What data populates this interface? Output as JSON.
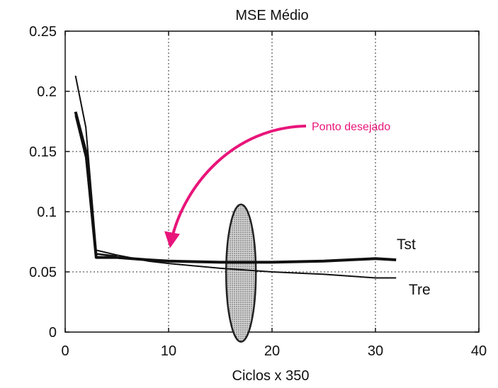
{
  "chart_data": {
    "type": "line",
    "title": "MSE Médio",
    "xlabel": "Ciclos x 350",
    "ylabel": "",
    "xlim": [
      0,
      40
    ],
    "ylim": [
      0,
      0.25
    ],
    "x_ticks": [
      "0",
      "10",
      "20",
      "30",
      "40"
    ],
    "y_ticks": [
      "0",
      "0.05",
      "0.1",
      "0.15",
      "0.2",
      "0.25"
    ],
    "grid": true,
    "series": [
      {
        "name": "Tst",
        "x": [
          1,
          2,
          3,
          5,
          8,
          10,
          15,
          20,
          25,
          30,
          32
        ],
        "y": [
          0.183,
          0.15,
          0.062,
          0.062,
          0.06,
          0.059,
          0.058,
          0.058,
          0.059,
          0.061,
          0.06
        ]
      },
      {
        "name": "Tre",
        "x": [
          1,
          2,
          3,
          5,
          8,
          10,
          15,
          20,
          25,
          30,
          32
        ],
        "y": [
          0.213,
          0.17,
          0.068,
          0.064,
          0.059,
          0.057,
          0.053,
          0.05,
          0.048,
          0.045,
          0.045
        ]
      },
      {
        "name": "",
        "x": [
          1,
          2,
          3,
          4,
          5
        ],
        "y": [
          0.18,
          0.145,
          0.065,
          0.064,
          0.063
        ]
      }
    ],
    "annotations": [
      {
        "text": "Ponto desejado",
        "color": "#e8157a",
        "arrow_to": [
          10,
          0.065
        ]
      }
    ],
    "highlight": {
      "type": "ellipse",
      "center": [
        17,
        0.049
      ]
    }
  }
}
